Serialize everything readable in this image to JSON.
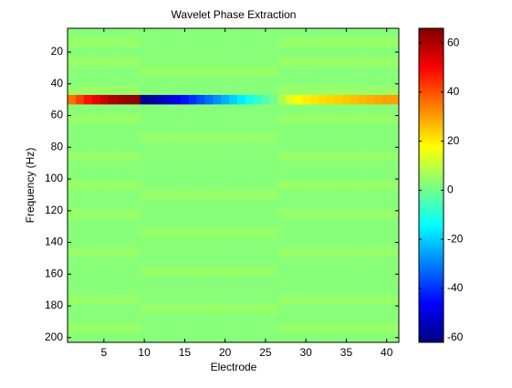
{
  "chart_data": {
    "type": "heatmap",
    "title": "Wavelet Phase Extraction",
    "xlabel": "Electrode",
    "ylabel": "Frequency (Hz)",
    "x": [
      1,
      2,
      3,
      4,
      5,
      6,
      7,
      8,
      9,
      10,
      11,
      12,
      13,
      14,
      15,
      16,
      17,
      18,
      19,
      20,
      21,
      22,
      23,
      24,
      25,
      26,
      27,
      28,
      29,
      30,
      31,
      32,
      33,
      34,
      35,
      36,
      37,
      38,
      39,
      40,
      41
    ],
    "y": [
      8,
      14,
      20,
      26,
      32,
      38,
      44,
      50,
      56,
      62,
      68,
      74,
      80,
      86,
      92,
      98,
      104,
      110,
      116,
      122,
      128,
      134,
      140,
      146,
      152,
      158,
      164,
      170,
      176,
      182,
      188,
      194,
      200
    ],
    "values": [
      [
        3,
        3,
        3,
        3,
        3,
        3,
        3,
        3,
        3,
        3,
        3,
        3,
        3,
        3,
        3,
        3,
        3,
        3,
        3,
        3,
        3,
        3,
        3,
        3,
        3,
        3,
        3,
        3,
        3,
        3,
        3,
        3,
        3,
        3,
        3,
        3,
        3,
        3,
        3,
        3,
        3
      ],
      [
        5,
        5,
        5,
        5,
        5,
        5,
        5,
        5,
        5,
        3,
        3,
        3,
        3,
        3,
        3,
        3,
        3,
        3,
        3,
        3,
        3,
        3,
        3,
        3,
        3,
        3,
        5,
        5,
        5,
        5,
        5,
        5,
        5,
        5,
        5,
        5,
        5,
        5,
        5,
        5,
        5
      ],
      [
        3,
        3,
        3,
        3,
        3,
        3,
        3,
        3,
        3,
        3,
        3,
        3,
        3,
        3,
        3,
        3,
        3,
        3,
        3,
        3,
        3,
        3,
        3,
        3,
        3,
        3,
        3,
        3,
        3,
        3,
        3,
        3,
        3,
        3,
        3,
        3,
        3,
        3,
        3,
        3,
        3
      ],
      [
        5,
        5,
        5,
        5,
        5,
        5,
        5,
        5,
        5,
        3,
        3,
        3,
        3,
        3,
        3,
        3,
        3,
        3,
        3,
        3,
        3,
        3,
        3,
        3,
        3,
        3,
        5,
        5,
        5,
        5,
        5,
        5,
        5,
        5,
        5,
        5,
        5,
        5,
        5,
        5,
        5
      ],
      [
        3,
        3,
        3,
        3,
        3,
        3,
        3,
        3,
        3,
        5,
        5,
        5,
        5,
        5,
        5,
        5,
        5,
        5,
        5,
        5,
        5,
        5,
        5,
        5,
        5,
        5,
        3,
        3,
        3,
        3,
        3,
        3,
        3,
        3,
        3,
        3,
        3,
        3,
        3,
        3,
        3
      ],
      [
        3,
        3,
        3,
        3,
        3,
        3,
        3,
        3,
        3,
        3,
        3,
        3,
        3,
        3,
        3,
        3,
        3,
        3,
        3,
        3,
        3,
        3,
        3,
        3,
        3,
        3,
        3,
        3,
        3,
        3,
        3,
        3,
        3,
        3,
        3,
        3,
        3,
        3,
        3,
        3,
        3
      ],
      [
        5,
        5,
        5,
        5,
        5,
        5,
        5,
        5,
        5,
        3,
        3,
        3,
        3,
        3,
        3,
        3,
        3,
        3,
        3,
        3,
        3,
        3,
        3,
        3,
        3,
        3,
        5,
        5,
        5,
        5,
        5,
        5,
        5,
        5,
        5,
        5,
        5,
        5,
        5,
        5,
        5
      ],
      [
        36,
        42,
        48,
        52,
        56,
        60,
        62,
        63,
        64,
        -60,
        -58,
        -55,
        -52,
        -48,
        -44,
        -40,
        -36,
        -32,
        -28,
        -24,
        -20,
        -16,
        -12,
        -8,
        -4,
        0,
        8,
        14,
        18,
        20,
        21,
        22,
        23,
        24,
        25,
        26,
        27,
        28,
        29,
        30,
        30
      ],
      [
        3,
        3,
        3,
        3,
        3,
        3,
        3,
        3,
        3,
        3,
        3,
        3,
        3,
        3,
        3,
        3,
        3,
        3,
        3,
        3,
        3,
        3,
        3,
        3,
        3,
        3,
        3,
        3,
        3,
        3,
        3,
        3,
        3,
        3,
        3,
        3,
        3,
        3,
        3,
        3,
        3
      ],
      [
        5,
        5,
        5,
        5,
        5,
        5,
        5,
        5,
        5,
        3,
        3,
        3,
        3,
        3,
        3,
        3,
        3,
        3,
        3,
        3,
        3,
        3,
        3,
        3,
        3,
        3,
        5,
        5,
        5,
        5,
        5,
        5,
        5,
        5,
        5,
        5,
        5,
        5,
        5,
        5,
        5
      ],
      [
        3,
        3,
        3,
        3,
        3,
        3,
        3,
        3,
        3,
        3,
        3,
        3,
        3,
        3,
        3,
        3,
        3,
        3,
        3,
        3,
        3,
        3,
        3,
        3,
        3,
        3,
        3,
        3,
        3,
        3,
        3,
        3,
        3,
        3,
        3,
        3,
        3,
        3,
        3,
        3,
        3
      ],
      [
        3,
        3,
        3,
        3,
        3,
        3,
        3,
        3,
        3,
        5,
        5,
        5,
        5,
        5,
        5,
        5,
        5,
        5,
        5,
        5,
        5,
        5,
        5,
        5,
        5,
        5,
        3,
        3,
        3,
        3,
        3,
        3,
        3,
        3,
        3,
        3,
        3,
        3,
        3,
        3,
        3
      ],
      [
        3,
        3,
        3,
        3,
        3,
        3,
        3,
        3,
        3,
        3,
        3,
        3,
        3,
        3,
        3,
        3,
        3,
        3,
        3,
        3,
        3,
        3,
        3,
        3,
        3,
        3,
        3,
        3,
        3,
        3,
        3,
        3,
        3,
        3,
        3,
        3,
        3,
        3,
        3,
        3,
        3
      ],
      [
        5,
        5,
        5,
        5,
        5,
        5,
        5,
        5,
        5,
        3,
        3,
        3,
        3,
        3,
        3,
        3,
        3,
        3,
        3,
        3,
        3,
        3,
        3,
        3,
        3,
        3,
        5,
        5,
        5,
        5,
        5,
        5,
        5,
        5,
        5,
        5,
        5,
        5,
        5,
        5,
        5
      ],
      [
        3,
        3,
        3,
        3,
        3,
        3,
        3,
        3,
        3,
        3,
        3,
        3,
        3,
        3,
        3,
        3,
        3,
        3,
        3,
        3,
        3,
        3,
        3,
        3,
        3,
        3,
        3,
        3,
        3,
        3,
        3,
        3,
        3,
        3,
        3,
        3,
        3,
        3,
        3,
        3,
        3
      ],
      [
        3,
        3,
        3,
        3,
        3,
        3,
        3,
        3,
        3,
        3,
        3,
        3,
        3,
        3,
        3,
        3,
        3,
        3,
        3,
        3,
        3,
        3,
        3,
        3,
        3,
        3,
        3,
        3,
        3,
        3,
        3,
        3,
        3,
        3,
        3,
        3,
        3,
        3,
        3,
        3,
        3
      ],
      [
        5,
        5,
        5,
        5,
        5,
        5,
        5,
        5,
        5,
        3,
        3,
        3,
        3,
        3,
        3,
        3,
        3,
        3,
        3,
        3,
        3,
        3,
        3,
        3,
        3,
        3,
        5,
        5,
        5,
        5,
        5,
        5,
        5,
        5,
        5,
        5,
        5,
        5,
        5,
        5,
        5
      ],
      [
        3,
        3,
        3,
        3,
        3,
        3,
        3,
        3,
        3,
        5,
        5,
        5,
        5,
        5,
        5,
        5,
        5,
        5,
        5,
        5,
        5,
        5,
        5,
        5,
        5,
        5,
        3,
        3,
        3,
        3,
        3,
        3,
        3,
        3,
        3,
        3,
        3,
        3,
        3,
        3,
        3
      ],
      [
        3,
        3,
        3,
        3,
        3,
        3,
        3,
        3,
        3,
        3,
        3,
        3,
        3,
        3,
        3,
        3,
        3,
        3,
        3,
        3,
        3,
        3,
        3,
        3,
        3,
        3,
        3,
        3,
        3,
        3,
        3,
        3,
        3,
        3,
        3,
        3,
        3,
        3,
        3,
        3,
        3
      ],
      [
        5,
        5,
        5,
        5,
        5,
        5,
        5,
        5,
        5,
        3,
        3,
        3,
        3,
        3,
        3,
        3,
        3,
        3,
        3,
        3,
        3,
        3,
        3,
        3,
        3,
        3,
        5,
        5,
        5,
        5,
        5,
        5,
        5,
        5,
        5,
        5,
        5,
        5,
        5,
        5,
        5
      ],
      [
        3,
        3,
        3,
        3,
        3,
        3,
        3,
        3,
        3,
        3,
        3,
        3,
        3,
        3,
        3,
        3,
        3,
        3,
        3,
        3,
        3,
        3,
        3,
        3,
        3,
        3,
        3,
        3,
        3,
        3,
        3,
        3,
        3,
        3,
        3,
        3,
        3,
        3,
        3,
        3,
        3
      ],
      [
        3,
        3,
        3,
        3,
        3,
        3,
        3,
        3,
        3,
        5,
        5,
        5,
        5,
        5,
        5,
        5,
        5,
        5,
        5,
        5,
        5,
        5,
        5,
        5,
        5,
        5,
        3,
        3,
        3,
        3,
        3,
        3,
        3,
        3,
        3,
        3,
        3,
        3,
        3,
        3,
        3
      ],
      [
        3,
        3,
        3,
        3,
        3,
        3,
        3,
        3,
        3,
        3,
        3,
        3,
        3,
        3,
        3,
        3,
        3,
        3,
        3,
        3,
        3,
        3,
        3,
        3,
        3,
        3,
        3,
        3,
        3,
        3,
        3,
        3,
        3,
        3,
        3,
        3,
        3,
        3,
        3,
        3,
        3
      ],
      [
        5,
        5,
        5,
        5,
        5,
        5,
        5,
        5,
        5,
        3,
        3,
        3,
        3,
        3,
        3,
        3,
        3,
        3,
        3,
        3,
        3,
        3,
        3,
        3,
        3,
        3,
        5,
        5,
        5,
        5,
        5,
        5,
        5,
        5,
        5,
        5,
        5,
        5,
        5,
        5,
        5
      ],
      [
        3,
        3,
        3,
        3,
        3,
        3,
        3,
        3,
        3,
        3,
        3,
        3,
        3,
        3,
        3,
        3,
        3,
        3,
        3,
        3,
        3,
        3,
        3,
        3,
        3,
        3,
        3,
        3,
        3,
        3,
        3,
        3,
        3,
        3,
        3,
        3,
        3,
        3,
        3,
        3,
        3
      ],
      [
        3,
        3,
        3,
        3,
        3,
        3,
        3,
        3,
        3,
        5,
        5,
        5,
        5,
        5,
        5,
        5,
        5,
        5,
        5,
        5,
        5,
        5,
        5,
        5,
        5,
        5,
        3,
        3,
        3,
        3,
        3,
        3,
        3,
        3,
        3,
        3,
        3,
        3,
        3,
        3,
        3
      ],
      [
        3,
        3,
        3,
        3,
        3,
        3,
        3,
        3,
        3,
        3,
        3,
        3,
        3,
        3,
        3,
        3,
        3,
        3,
        3,
        3,
        3,
        3,
        3,
        3,
        3,
        3,
        3,
        3,
        3,
        3,
        3,
        3,
        3,
        3,
        3,
        3,
        3,
        3,
        3,
        3,
        3
      ],
      [
        3,
        3,
        3,
        3,
        3,
        3,
        3,
        3,
        3,
        3,
        3,
        3,
        3,
        3,
        3,
        3,
        3,
        3,
        3,
        3,
        3,
        3,
        3,
        3,
        3,
        3,
        3,
        3,
        3,
        3,
        3,
        3,
        3,
        3,
        3,
        3,
        3,
        3,
        3,
        3,
        3
      ],
      [
        5,
        5,
        5,
        5,
        5,
        5,
        5,
        5,
        5,
        3,
        3,
        3,
        3,
        3,
        3,
        3,
        3,
        3,
        3,
        3,
        3,
        3,
        3,
        3,
        3,
        3,
        5,
        5,
        5,
        5,
        5,
        5,
        5,
        5,
        5,
        5,
        5,
        5,
        5,
        5,
        5
      ],
      [
        3,
        3,
        3,
        3,
        3,
        3,
        3,
        3,
        3,
        5,
        5,
        5,
        5,
        5,
        5,
        5,
        5,
        5,
        5,
        5,
        5,
        5,
        5,
        5,
        5,
        5,
        3,
        3,
        3,
        3,
        3,
        3,
        3,
        3,
        3,
        3,
        3,
        3,
        3,
        3,
        3
      ],
      [
        3,
        3,
        3,
        3,
        3,
        3,
        3,
        3,
        3,
        3,
        3,
        3,
        3,
        3,
        3,
        3,
        3,
        3,
        3,
        3,
        3,
        3,
        3,
        3,
        3,
        3,
        3,
        3,
        3,
        3,
        3,
        3,
        3,
        3,
        3,
        3,
        3,
        3,
        3,
        3,
        3
      ],
      [
        5,
        5,
        5,
        5,
        5,
        5,
        5,
        5,
        5,
        3,
        3,
        3,
        3,
        3,
        3,
        3,
        3,
        3,
        3,
        3,
        3,
        3,
        3,
        3,
        3,
        3,
        5,
        5,
        5,
        5,
        5,
        5,
        5,
        5,
        5,
        5,
        5,
        5,
        5,
        5,
        5
      ],
      [
        3,
        3,
        3,
        3,
        3,
        3,
        3,
        3,
        3,
        3,
        3,
        3,
        3,
        3,
        3,
        3,
        3,
        3,
        3,
        3,
        3,
        3,
        3,
        3,
        3,
        3,
        3,
        3,
        3,
        3,
        3,
        3,
        3,
        3,
        3,
        3,
        3,
        3,
        3,
        3,
        3
      ]
    ],
    "colormap": "jet",
    "xlim": [
      0.5,
      41.5
    ],
    "xticks": [
      5,
      10,
      15,
      20,
      25,
      30,
      35,
      40
    ],
    "ylim": [
      5,
      203
    ],
    "yticks": [
      20,
      40,
      60,
      80,
      100,
      120,
      140,
      160,
      180,
      200
    ],
    "y_reversed": true,
    "clim": [
      -62,
      66
    ],
    "cticks": [
      -60,
      -40,
      -20,
      0,
      20,
      40,
      60
    ]
  }
}
